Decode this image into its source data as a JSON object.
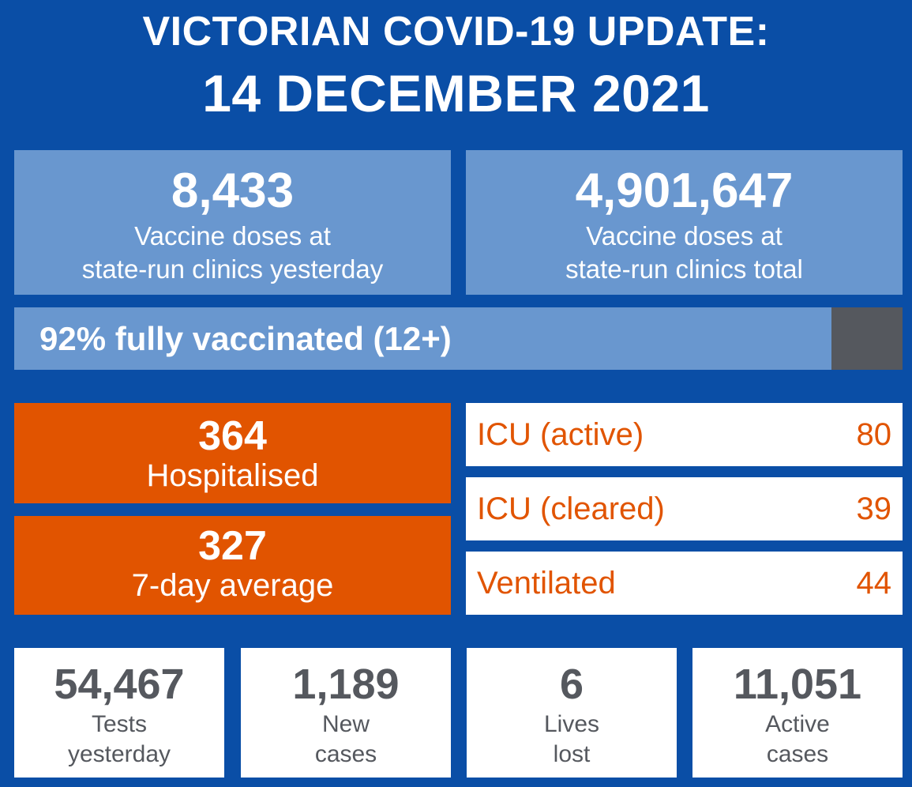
{
  "header": {
    "title_line1": "VICTORIAN COVID-19 UPDATE:",
    "title_line2": "14 DECEMBER 2021"
  },
  "vaccine": {
    "yesterday": {
      "value": "8,433",
      "label_line1": "Vaccine doses at",
      "label_line2": "state-run clinics yesterday"
    },
    "total": {
      "value": "4,901,647",
      "label_line1": "Vaccine doses at",
      "label_line2": "state-run clinics total"
    }
  },
  "fully_vaccinated": {
    "text": "92% fully vaccinated (12+)",
    "percent": 92
  },
  "hospital": {
    "hospitalised": {
      "value": "364",
      "label": "Hospitalised"
    },
    "seven_day_avg": {
      "value": "327",
      "label": "7-day average"
    }
  },
  "icu": [
    {
      "label": "ICU (active)",
      "value": "80"
    },
    {
      "label": "ICU (cleared)",
      "value": "39"
    },
    {
      "label": "Ventilated",
      "value": "44"
    }
  ],
  "stats": [
    {
      "value": "54,467",
      "label_line1": "Tests",
      "label_line2": "yesterday"
    },
    {
      "value": "1,189",
      "label_line1": "New",
      "label_line2": "cases"
    },
    {
      "value": "6",
      "label_line1": "Lives",
      "label_line2": "lost"
    },
    {
      "value": "11,051",
      "label_line1": "Active",
      "label_line2": "cases"
    }
  ],
  "colors": {
    "background": "#0a4ea6",
    "light_blue": "#6997cf",
    "orange": "#e15400",
    "grey": "#55585e",
    "white": "#ffffff"
  }
}
